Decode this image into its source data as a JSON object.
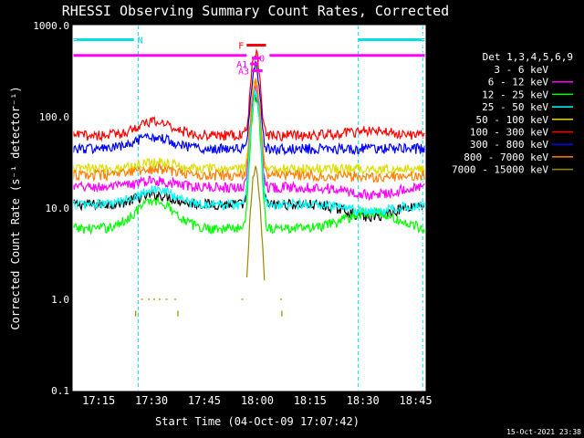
{
  "chart_data": {
    "type": "line",
    "title": "RHESSI Observing Summary Count Rates, Corrected",
    "xlabel": "Start Time (04-Oct-09 17:07:42)",
    "ylabel": "Corrected Count Rate (s⁻¹ detector⁻¹)",
    "footer": "15-Oct-2021 23:38",
    "legend_title": "Det 1,3,4,5,6,9",
    "legend_placement": "right",
    "yscale": "log",
    "ylim": [
      0.1,
      1000
    ],
    "xlim_minutes": [
      1027.7,
      1127.7
    ],
    "y_ticks": [
      {
        "v": 1000,
        "label": "1000.0"
      },
      {
        "v": 100,
        "label": "100.0"
      },
      {
        "v": 10,
        "label": "10.0"
      },
      {
        "v": 1,
        "label": "1.0"
      },
      {
        "v": 0.1,
        "label": "0.1"
      }
    ],
    "x_ticks": [
      {
        "t": 1035,
        "label": "17:15"
      },
      {
        "t": 1050,
        "label": "17:30"
      },
      {
        "t": 1065,
        "label": "17:45"
      },
      {
        "t": 1080,
        "label": "18:00"
      },
      {
        "t": 1095,
        "label": "18:15"
      },
      {
        "t": 1110,
        "label": "18:30"
      },
      {
        "t": 1125,
        "label": "18:45"
      }
    ],
    "vertical_markers": [
      {
        "t": 1027.7,
        "color": "#00e0e0"
      },
      {
        "t": 1046.2,
        "color": "#00e0e0"
      },
      {
        "t": 1108.7,
        "color": "#00e0e0"
      },
      {
        "t": 1127.0,
        "color": "#00e0e0"
      }
    ],
    "flag_bars": [
      {
        "label": "N",
        "t_start": 1027.7,
        "t_end": 1045.0,
        "value": 700,
        "color": "#00e0e0"
      },
      {
        "label": "",
        "t_start": 1108.7,
        "t_end": 1127.7,
        "value": 700,
        "color": "#00e0e0"
      },
      {
        "label": "",
        "t_start": 1027.7,
        "t_end": 1077.0,
        "value": 470,
        "color": "#ff00ff"
      },
      {
        "label": "",
        "t_start": 1083.5,
        "t_end": 1127.7,
        "value": 470,
        "color": "#ff00ff"
      },
      {
        "label": "F",
        "t_start": 1077.0,
        "t_end": 1082.5,
        "value": 610,
        "color": "#ff0000"
      },
      {
        "label": "A0",
        "t_start": 1078.5,
        "t_end": 1081.0,
        "value": 440,
        "color": "#ff00ff"
      },
      {
        "label": "A1",
        "t_start": 1078.0,
        "t_end": 1080.2,
        "value": 380,
        "color": "#ff00ff"
      },
      {
        "label": "A3",
        "t_start": 1078.5,
        "t_end": 1081.5,
        "value": 320,
        "color": "#ff00ff"
      }
    ],
    "series": [
      {
        "name": "3 - 6 keV",
        "color": "#000000",
        "baseline": 11,
        "bump1": 14,
        "bump2": 8,
        "peak": 175
      },
      {
        "name": "6 - 12 keV",
        "color": "#ff00ff",
        "baseline": 17,
        "bump1": 20,
        "bump2": 14,
        "peak": 220
      },
      {
        "name": "12 - 25 keV",
        "color": "#00ff00",
        "baseline": 6,
        "bump1": 12,
        "bump2": 9,
        "peak": 160
      },
      {
        "name": "25 - 50 keV",
        "color": "#00ffff",
        "baseline": 11,
        "bump1": 16,
        "bump2": 9,
        "peak": 190
      },
      {
        "name": "50 - 100 keV",
        "color": "#dddd00",
        "baseline": 27,
        "bump1": 32,
        "bump2": 27,
        "peak": 260
      },
      {
        "name": "100 - 300 keV",
        "color": "#ff0000",
        "baseline": 63,
        "bump1": 88,
        "bump2": 70,
        "peak": 520
      },
      {
        "name": "300 - 800 keV",
        "color": "#0000ff",
        "baseline": 45,
        "bump1": 60,
        "bump2": 45,
        "peak": 360
      },
      {
        "name": "800 - 7000 keV",
        "color": "#ff8000",
        "baseline": 23,
        "bump1": 27,
        "bump2": 22,
        "peak": 240
      },
      {
        "name": "7000 - 15000 keV",
        "color": "#9a8a00",
        "baseline": 1.0,
        "bump1": 1.0,
        "bump2": 1.0,
        "peak": 26
      }
    ]
  }
}
